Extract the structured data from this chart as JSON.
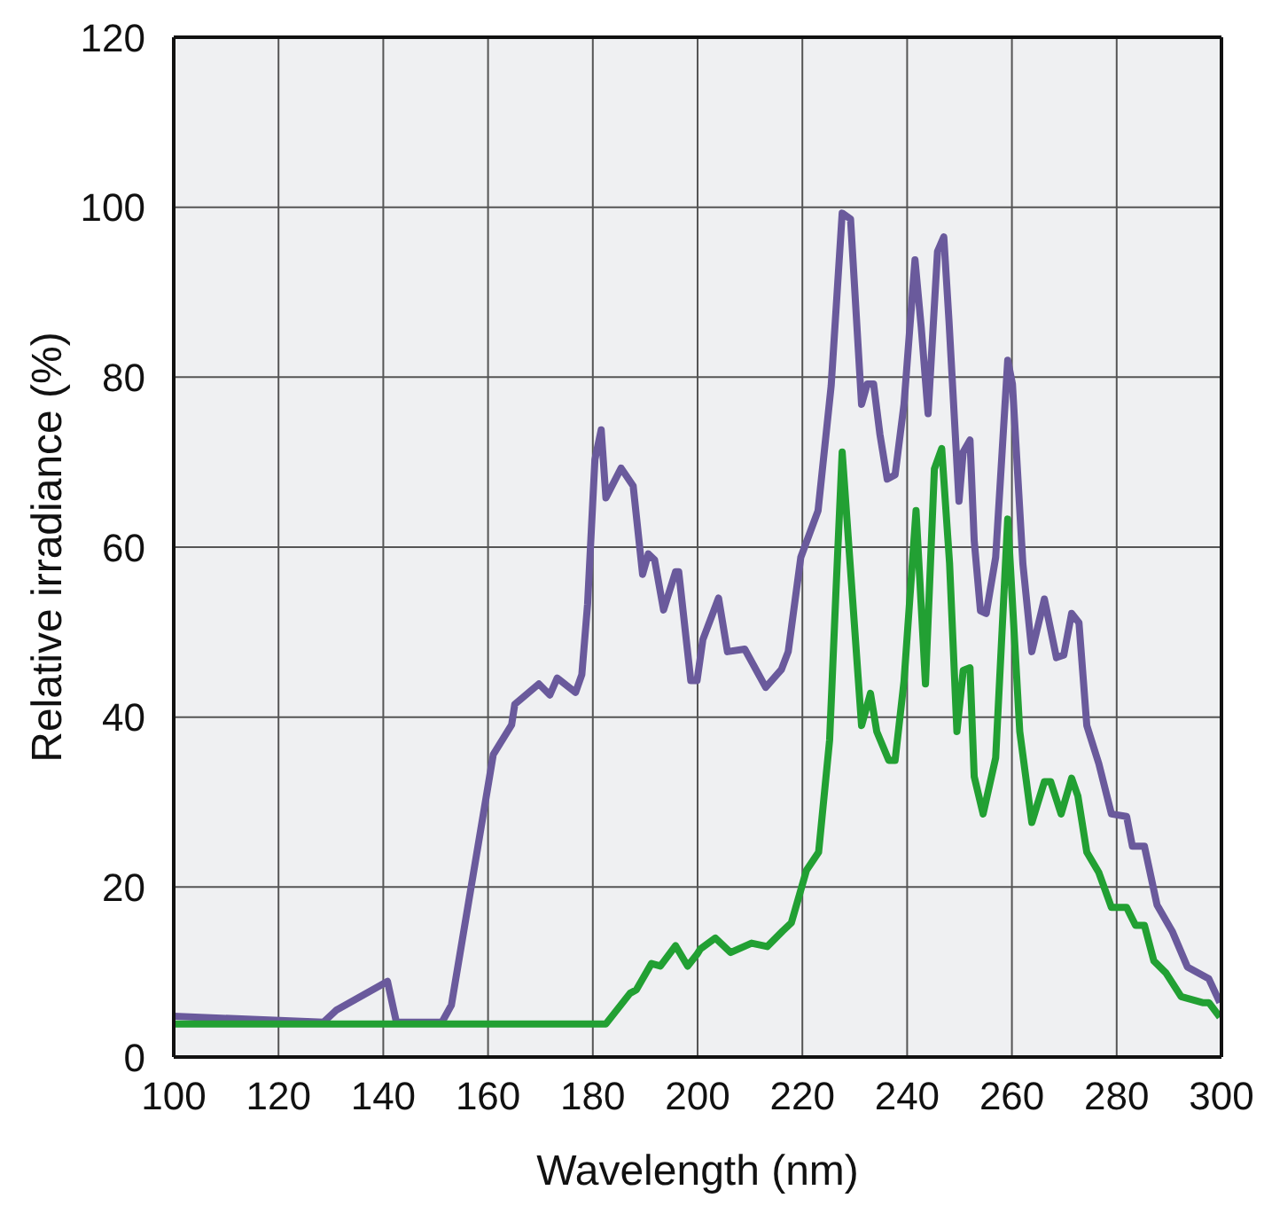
{
  "chart_data": {
    "type": "line",
    "xlabel": "Wavelength (nm)",
    "ylabel": "Relative irradiance (%)",
    "xlim": [
      100,
      300
    ],
    "xticks": [
      100,
      120,
      140,
      160,
      180,
      200,
      220,
      240,
      260,
      280,
      300
    ],
    "ylim": [
      0,
      120
    ],
    "yticks": [
      0,
      20,
      40,
      60,
      80,
      100,
      120
    ],
    "grid": true,
    "marker": "none",
    "line_style": "solid",
    "series": [
      {
        "color": "#6a5a9c",
        "x": [
          100,
          128.6,
          131,
          140.8,
          142.5,
          151.2,
          153,
          161,
          164.5,
          165.1,
          169.7,
          171.8,
          173.2,
          176.7,
          177.9,
          179,
          180.4,
          181.6,
          182.5,
          185.4,
          187.7,
          189.5,
          190.6,
          191.8,
          193.5,
          195.8,
          196.4,
          198.7,
          199.9,
          201,
          204,
          205.7,
          209,
          213,
          216,
          217.3,
          219.7,
          223,
          225.5,
          227.6,
          229.2,
          231.3,
          232.4,
          233.6,
          234.8,
          236.2,
          237.7,
          239.4,
          241.5,
          242.7,
          244,
          245.8,
          247,
          248,
          249.9,
          250.7,
          252,
          252.8,
          254,
          255.1,
          256.9,
          259.2,
          260.1,
          262.1,
          263.8,
          266.2,
          268.5,
          269.9,
          271.4,
          272.8,
          274.3,
          276.6,
          279,
          281.9,
          283,
          285.3,
          287.7,
          290.6,
          293.5,
          297.6,
          299.7
        ],
        "values": [
          4.8,
          4.1,
          5.5,
          8.9,
          4.1,
          4.1,
          6.1,
          35.6,
          39.1,
          41.5,
          43.9,
          42.6,
          44.6,
          42.9,
          45,
          53.3,
          70.3,
          73.8,
          65.8,
          69.3,
          67.2,
          56.8,
          59.2,
          58.5,
          52.6,
          57.1,
          57.1,
          44.3,
          44.3,
          49.1,
          54,
          47.7,
          48,
          43.5,
          45.6,
          47.7,
          58.8,
          64.3,
          79,
          99.3,
          98.6,
          76.8,
          79.2,
          79.2,
          73.3,
          68,
          68.5,
          76.8,
          93.8,
          85.8,
          75.7,
          94.8,
          96.5,
          86.5,
          65.4,
          71.2,
          72.6,
          60.8,
          52.5,
          52.2,
          58.8,
          82,
          79.2,
          58,
          47.7,
          53.9,
          47,
          47.3,
          52.2,
          51.1,
          39,
          34.5,
          28.6,
          28.3,
          24.8,
          24.8,
          17.9,
          14.8,
          10.6,
          9.2,
          6.4
        ]
      },
      {
        "color": "#22a033",
        "x": [
          100,
          182.5,
          187.1,
          188.3,
          191.2,
          192.9,
          195.8,
          198.1,
          199.9,
          200.5,
          203.4,
          206.3,
          210.3,
          213.3,
          216.2,
          217.9,
          220.8,
          223.1,
          225.2,
          226.4,
          227.6,
          231.3,
          233,
          234.2,
          236.5,
          237.7,
          239.4,
          241.7,
          243.5,
          245.2,
          246.6,
          248.1,
          249.5,
          250.7,
          252,
          252.8,
          254.5,
          256.9,
          259.2,
          261.5,
          263.8,
          266.2,
          267.4,
          269.4,
          271.4,
          272.6,
          274.3,
          276.6,
          279,
          281.9,
          283.6,
          285.3,
          287.1,
          289.4,
          292.3,
          296.4,
          297.6,
          299.7
        ],
        "values": [
          3.9,
          3.9,
          7.5,
          7.9,
          11,
          10.7,
          13.1,
          10.7,
          12.1,
          12.7,
          14,
          12.3,
          13.4,
          13,
          14.8,
          15.8,
          22,
          24.1,
          37.3,
          54.6,
          71.2,
          39,
          42.8,
          38.3,
          34.9,
          34.9,
          44.2,
          64.3,
          43.9,
          69.2,
          71.6,
          58.1,
          38.3,
          45.5,
          45.8,
          33,
          28.6,
          35.2,
          63.3,
          38.3,
          27.6,
          32.4,
          32.4,
          28.6,
          32.8,
          30.7,
          24.1,
          21.7,
          17.6,
          17.6,
          15.5,
          15.5,
          11.3,
          9.9,
          7.1,
          6.4,
          6.4,
          4.7
        ]
      }
    ]
  }
}
